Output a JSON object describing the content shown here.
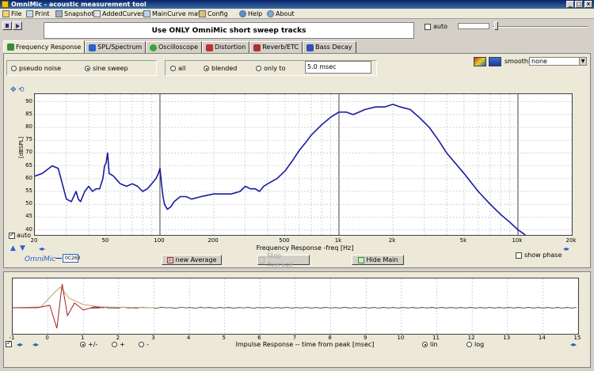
{
  "window": {
    "title": "OmniMic - acoustic measurement tool"
  },
  "menu": [
    {
      "label": "File",
      "icon": "folder-icon"
    },
    {
      "label": "Print",
      "icon": "printer-icon"
    },
    {
      "label": "Snapshot",
      "icon": "camera-icon"
    },
    {
      "label": "AddedCurves",
      "icon": "curves-icon"
    },
    {
      "label": "MainCurve math",
      "icon": "math-icon"
    },
    {
      "label": "Config",
      "icon": "wrench-icon"
    },
    {
      "label": "Help",
      "icon": "help-icon"
    },
    {
      "label": "About",
      "icon": "about-icon"
    }
  ],
  "banner": {
    "text": "Use ONLY OmniMic short sweep tracks"
  },
  "topright": {
    "auto_label": "auto",
    "auto_checked": false
  },
  "tabs": [
    {
      "label": "Frequency Response",
      "active": true,
      "color": "#3a8a3a"
    },
    {
      "label": "SPL/Spectrum",
      "active": false,
      "color": "#2a62c9"
    },
    {
      "label": "Oscilloscope",
      "active": false,
      "color": "#39a339"
    },
    {
      "label": "Distortion",
      "active": false,
      "color": "#c03030"
    },
    {
      "label": "Reverb/ETC",
      "active": false,
      "color": "#b03030"
    },
    {
      "label": "Bass Decay",
      "active": false,
      "color": "#3050b0"
    }
  ],
  "signal": {
    "options": [
      "pseudo noise",
      "sine sweep"
    ],
    "selected": "sine sweep"
  },
  "gating": {
    "options": [
      "all",
      "blended",
      "only to"
    ],
    "selected": "blended",
    "gate_value": "5.0 msec"
  },
  "smoothing": {
    "label": "smoothing",
    "value": "none"
  },
  "fr_plot": {
    "ylabel": "[dBSPL]",
    "yticks": [
      90,
      85,
      80,
      75,
      70,
      65,
      60,
      55,
      50,
      45,
      40
    ],
    "xticks": [
      "20",
      "50",
      "100",
      "200",
      "500",
      "1k",
      "2k",
      "5k",
      "10k",
      "20k"
    ],
    "xlabel": "Frequency Response -freq [Hz]",
    "auto_label": "auto",
    "auto_checked": true,
    "show_phase_label": "show phase",
    "show_phase_checked": false,
    "brand": "OmniMic",
    "device": "0C263",
    "buttons": {
      "new_average": "new Average",
      "stop_average": "Stop Average",
      "hide_main": "Hide Main"
    },
    "curve_color": "#1a1aa0"
  },
  "chart_data": [
    {
      "type": "line",
      "title": "",
      "xlabel": "Frequency Response -freq [Hz]",
      "ylabel": "[dBSPL]",
      "xscale": "log",
      "xlim": [
        20,
        20000
      ],
      "ylim": [
        38,
        93
      ],
      "series": [
        {
          "x": [
            20,
            22,
            25,
            27,
            28,
            30,
            32,
            34,
            35,
            36,
            38,
            40,
            42,
            44,
            46,
            48,
            49,
            50,
            51,
            52,
            55,
            60,
            65,
            70,
            75,
            80,
            85,
            90,
            95,
            98,
            100,
            102,
            104,
            106,
            110,
            115,
            120,
            130,
            140,
            150,
            170,
            200,
            220,
            250,
            280,
            300,
            320,
            340,
            360,
            380,
            400,
            450,
            500,
            550,
            600,
            650,
            700,
            800,
            900,
            1000,
            1100,
            1200,
            1400,
            1600,
            1800,
            2000,
            2200,
            2500,
            2800,
            3200,
            3600,
            4000,
            5000,
            6000,
            7000,
            8000,
            9000,
            10000,
            10500,
            11000
          ],
          "y": [
            61,
            62,
            65,
            64,
            60,
            52,
            51,
            55,
            52,
            51,
            55,
            57,
            55,
            56,
            56,
            60,
            65,
            66,
            70,
            62,
            61,
            58,
            57,
            58,
            57,
            55,
            56,
            58,
            60,
            62,
            64,
            58,
            53,
            50,
            48,
            49,
            51,
            53,
            53,
            52,
            53,
            54,
            54,
            54,
            55,
            57,
            56,
            56,
            55,
            57,
            58,
            60,
            63,
            67,
            71,
            74,
            77,
            81,
            84,
            86,
            86,
            85,
            87,
            88,
            88,
            89,
            88,
            87,
            84,
            80,
            75,
            70,
            62,
            55,
            50,
            46,
            43,
            40,
            39,
            38
          ]
        }
      ]
    },
    {
      "type": "line",
      "title": "",
      "xlabel": "Impulse Response  -- time from peak [msec]",
      "ylabel": "",
      "xlim": [
        -1,
        15
      ],
      "series": []
    }
  ],
  "ir_plot": {
    "xticks": [
      "-1",
      "0",
      "1",
      "2",
      "3",
      "4",
      "5",
      "6",
      "7",
      "8",
      "9",
      "10",
      "11",
      "12",
      "13",
      "14",
      "15"
    ],
    "xlabel": "Impulse Response  -- time from peak [msec]",
    "polarity": {
      "options": [
        "+/-",
        "+",
        "-"
      ],
      "selected": "+/-"
    },
    "scale": {
      "options": [
        "lin",
        "log"
      ],
      "selected": "lin"
    },
    "checked": true
  }
}
